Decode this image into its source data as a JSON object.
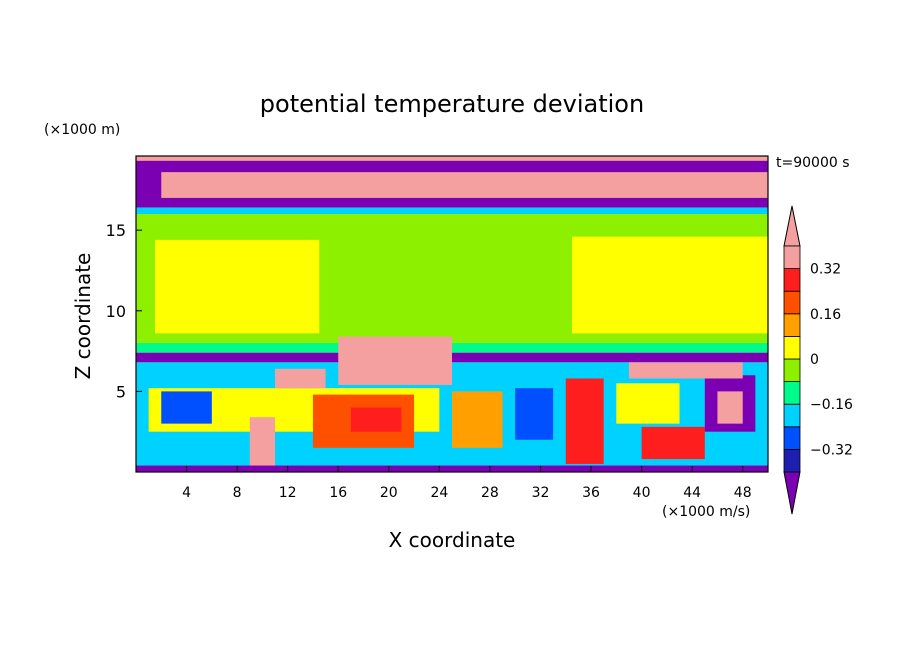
{
  "chart_data": {
    "type": "heatmap",
    "title": "potential temperature deviation",
    "xlabel": "X coordinate",
    "ylabel": "Z coordinate",
    "x_unit": "(×1000 m/s)",
    "y_unit": "(×1000 m)",
    "time_label": "t=90000 s",
    "xlim": [
      0,
      50
    ],
    "ylim": [
      0,
      19.6
    ],
    "x_ticks": [
      4,
      8,
      12,
      16,
      20,
      24,
      28,
      32,
      36,
      40,
      44,
      48
    ],
    "y_ticks": [
      5,
      10,
      15
    ],
    "colorbar": {
      "levels": [
        -0.4,
        -0.32,
        -0.24,
        -0.16,
        -0.08,
        0,
        0.08,
        0.16,
        0.24,
        0.32,
        0.4
      ],
      "tick_labels": [
        "0.32",
        "0.16",
        "0",
        "−0.16",
        "−0.32"
      ],
      "tick_values": [
        0.32,
        0.16,
        0,
        -0.16,
        -0.32
      ],
      "colors": [
        "#7b00b4",
        "#1e1eaf",
        "#0050ff",
        "#00d2ff",
        "#00fa8c",
        "#8cf000",
        "#ffff00",
        "#ffa000",
        "#ff5000",
        "#ff1e1e",
        "#f5a0a0"
      ],
      "extend": "both"
    },
    "regions": [
      {
        "x0": 0,
        "x1": 50,
        "z0": 16.4,
        "z1": 19.6,
        "value": -0.45
      },
      {
        "x0": 0,
        "x1": 50,
        "z0": 16.0,
        "z1": 16.4,
        "value": -0.2
      },
      {
        "x0": 0,
        "x1": 50,
        "z0": 8.0,
        "z1": 16.0,
        "value": -0.04
      },
      {
        "x0": 1.5,
        "x1": 14.5,
        "z0": 8.6,
        "z1": 14.4,
        "value": 0.04
      },
      {
        "x0": 34.5,
        "x1": 50,
        "z0": 8.6,
        "z1": 14.6,
        "value": 0.04
      },
      {
        "x0": 0,
        "x1": 50,
        "z0": 7.4,
        "z1": 8.0,
        "value": -0.12
      },
      {
        "x0": 0,
        "x1": 50,
        "z0": 6.8,
        "z1": 7.4,
        "value": -0.45
      },
      {
        "x0": 0,
        "x1": 50,
        "z0": 0,
        "z1": 6.8,
        "value": -0.2
      },
      {
        "x0": 1,
        "x1": 24,
        "z0": 2.5,
        "z1": 5.2,
        "value": 0.04
      },
      {
        "x0": 14,
        "x1": 22,
        "z0": 1.5,
        "z1": 4.8,
        "value": 0.2
      },
      {
        "x0": 17,
        "x1": 21,
        "z0": 2.5,
        "z1": 4.0,
        "value": 0.28
      },
      {
        "x0": 9,
        "x1": 11,
        "z0": 0.2,
        "z1": 3.4,
        "value": 0.45
      },
      {
        "x0": 2,
        "x1": 6,
        "z0": 3.0,
        "z1": 5.0,
        "value": -0.3
      },
      {
        "x0": 25,
        "x1": 29,
        "z0": 1.5,
        "z1": 5.0,
        "value": 0.12
      },
      {
        "x0": 30,
        "x1": 33,
        "z0": 2.0,
        "z1": 5.2,
        "value": -0.3
      },
      {
        "x0": 34,
        "x1": 37,
        "z0": 0.5,
        "z1": 5.8,
        "value": 0.28
      },
      {
        "x0": 38,
        "x1": 43,
        "z0": 3.0,
        "z1": 5.5,
        "value": 0.04
      },
      {
        "x0": 40,
        "x1": 45,
        "z0": 0.8,
        "z1": 2.8,
        "value": 0.28
      },
      {
        "x0": 45,
        "x1": 49,
        "z0": 2.5,
        "z1": 6.0,
        "value": -0.45
      },
      {
        "x0": 46,
        "x1": 48,
        "z0": 3.0,
        "z1": 5.0,
        "value": 0.45
      },
      {
        "x0": 0,
        "x1": 50,
        "z0": 0,
        "z1": 0.4,
        "value": -0.45
      },
      {
        "x0": 11,
        "x1": 15,
        "z0": 5.2,
        "z1": 6.4,
        "value": 0.45
      },
      {
        "x0": 16,
        "x1": 25,
        "z0": 5.4,
        "z1": 8.4,
        "value": 0.45
      },
      {
        "x0": 39,
        "x1": 48,
        "z0": 5.8,
        "z1": 6.8,
        "value": 0.45
      },
      {
        "x0": 2,
        "x1": 50,
        "z0": 17.0,
        "z1": 18.6,
        "value": 0.45
      },
      {
        "x0": 0,
        "x1": 50,
        "z0": 19.3,
        "z1": 19.6,
        "value": 0.45
      }
    ]
  }
}
